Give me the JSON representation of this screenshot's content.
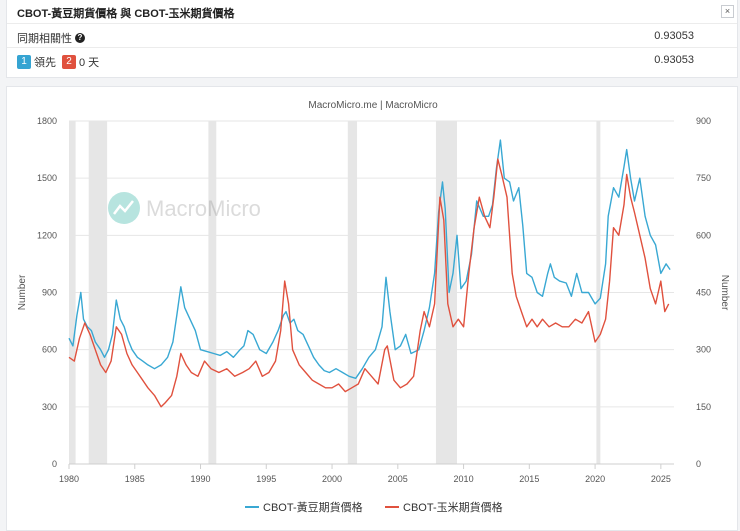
{
  "info": {
    "title": "CBOT-黃豆期貨價格 與 CBOT-玉米期貨價格",
    "close_label": "×",
    "correlation_label": "同期相關性",
    "help_icon": "?",
    "correlation_value": "0.93053",
    "lead_badge_1": "1",
    "lead_text": "領先",
    "lead_badge_2": "2",
    "lead_days": "0 天",
    "lead_value": "0.93053"
  },
  "colors": {
    "soy": "#39a8d3",
    "corn": "#e0513e",
    "recession": "#e6e6e6",
    "grid": "#e6e6e6"
  },
  "chart_data": {
    "type": "line",
    "title": "MacroMicro.me | MacroMicro",
    "watermark": "MacroMicro",
    "ylabel_left": "Number",
    "ylabel_right": "Number",
    "ylim_left": [
      0,
      1800
    ],
    "ylim_right": [
      0,
      900
    ],
    "yticks_left": [
      "0",
      "300",
      "600",
      "900",
      "1200",
      "1500",
      "1800"
    ],
    "yticks_right": [
      "0",
      "150",
      "300",
      "450",
      "600",
      "750",
      "900"
    ],
    "xlim": [
      1980,
      2026
    ],
    "xticks": [
      "1980",
      "1985",
      "1990",
      "1995",
      "2000",
      "2005",
      "2010",
      "2015",
      "2020",
      "2025"
    ],
    "recessions": [
      [
        1980.0,
        1980.5
      ],
      [
        1981.5,
        1982.9
      ],
      [
        1990.6,
        1991.2
      ],
      [
        2001.2,
        2001.9
      ],
      [
        2007.9,
        2009.5
      ],
      [
        2020.1,
        2020.4
      ]
    ],
    "series": [
      {
        "name": "CBOT-黃豆期貨價格",
        "axis": "left",
        "x": [
          1980.0,
          1980.3,
          1980.6,
          1980.9,
          1981.1,
          1981.4,
          1981.7,
          1982.0,
          1982.4,
          1982.7,
          1983.0,
          1983.3,
          1983.6,
          1983.9,
          1984.2,
          1984.5,
          1984.8,
          1985.2,
          1985.6,
          1986.0,
          1986.5,
          1987.0,
          1987.5,
          1987.9,
          1988.2,
          1988.5,
          1988.8,
          1989.2,
          1989.6,
          1990.0,
          1990.5,
          1991.0,
          1991.5,
          1992.0,
          1992.5,
          1993.0,
          1993.3,
          1993.6,
          1994.0,
          1994.5,
          1995.0,
          1995.5,
          1995.9,
          1996.3,
          1996.5,
          1996.8,
          1997.1,
          1997.4,
          1997.8,
          1998.2,
          1998.6,
          1999.0,
          1999.4,
          1999.8,
          2000.3,
          2000.8,
          2001.3,
          2001.8,
          2002.3,
          2002.8,
          2003.3,
          2003.8,
          2004.1,
          2004.4,
          2004.8,
          2005.2,
          2005.6,
          2006.0,
          2006.6,
          2007.0,
          2007.4,
          2007.8,
          2008.1,
          2008.4,
          2008.6,
          2008.9,
          2009.2,
          2009.5,
          2009.8,
          2010.2,
          2010.6,
          2011.0,
          2011.5,
          2011.9,
          2012.2,
          2012.5,
          2012.8,
          2013.1,
          2013.5,
          2013.8,
          2014.2,
          2014.5,
          2014.8,
          2015.2,
          2015.6,
          2016.0,
          2016.4,
          2016.6,
          2016.9,
          2017.3,
          2017.8,
          2018.2,
          2018.6,
          2019.0,
          2019.5,
          2020.0,
          2020.4,
          2020.8,
          2021.0,
          2021.4,
          2021.8,
          2022.2,
          2022.4,
          2022.7,
          2023.0,
          2023.4,
          2023.8,
          2024.2,
          2024.6,
          2025.0,
          2025.4,
          2025.7
        ],
        "values": [
          660,
          620,
          780,
          900,
          760,
          720,
          700,
          640,
          600,
          560,
          600,
          680,
          860,
          760,
          720,
          650,
          600,
          560,
          540,
          520,
          500,
          520,
          560,
          640,
          780,
          930,
          820,
          760,
          700,
          600,
          590,
          580,
          570,
          590,
          560,
          600,
          620,
          700,
          680,
          600,
          580,
          640,
          700,
          780,
          800,
          740,
          760,
          700,
          680,
          620,
          560,
          520,
          490,
          480,
          500,
          480,
          460,
          450,
          500,
          560,
          600,
          720,
          980,
          800,
          600,
          620,
          680,
          580,
          600,
          700,
          820,
          1000,
          1320,
          1480,
          1340,
          900,
          1000,
          1200,
          920,
          960,
          1100,
          1380,
          1300,
          1300,
          1360,
          1550,
          1700,
          1500,
          1480,
          1380,
          1450,
          1250,
          1000,
          980,
          900,
          880,
          1000,
          1050,
          980,
          960,
          950,
          880,
          1000,
          900,
          900,
          840,
          870,
          1050,
          1300,
          1450,
          1400,
          1560,
          1650,
          1500,
          1380,
          1500,
          1300,
          1200,
          1150,
          1000,
          1050,
          1020
        ]
      },
      {
        "name": "CBOT-玉米期貨價格",
        "axis": "right",
        "x": [
          1980.0,
          1980.4,
          1980.8,
          1981.2,
          1981.6,
          1982.0,
          1982.4,
          1982.8,
          1983.2,
          1983.6,
          1984.0,
          1984.4,
          1984.8,
          1985.2,
          1985.6,
          1986.0,
          1986.5,
          1987.0,
          1987.3,
          1987.8,
          1988.2,
          1988.5,
          1988.9,
          1989.3,
          1989.8,
          1990.3,
          1990.8,
          1991.4,
          1992.0,
          1992.6,
          1993.2,
          1993.7,
          1994.2,
          1994.7,
          1995.2,
          1995.7,
          1996.1,
          1996.4,
          1996.7,
          1997.0,
          1997.5,
          1998.0,
          1998.5,
          1999.0,
          1999.5,
          2000.0,
          2000.5,
          2001.0,
          2001.5,
          2002.0,
          2002.5,
          2003.0,
          2003.5,
          2004.0,
          2004.2,
          2004.7,
          2005.2,
          2005.7,
          2006.2,
          2006.7,
          2007.0,
          2007.4,
          2007.8,
          2008.2,
          2008.5,
          2008.8,
          2009.2,
          2009.6,
          2010.0,
          2010.4,
          2010.8,
          2011.2,
          2011.6,
          2012.0,
          2012.3,
          2012.6,
          2012.9,
          2013.3,
          2013.7,
          2014.0,
          2014.4,
          2014.8,
          2015.2,
          2015.6,
          2016.0,
          2016.5,
          2017.0,
          2017.5,
          2018.0,
          2018.5,
          2019.0,
          2019.5,
          2020.0,
          2020.4,
          2020.8,
          2021.1,
          2021.4,
          2021.8,
          2022.2,
          2022.4,
          2022.7,
          2023.0,
          2023.4,
          2023.8,
          2024.2,
          2024.6,
          2025.0,
          2025.3,
          2025.6
        ],
        "values": [
          280,
          270,
          330,
          370,
          340,
          300,
          260,
          240,
          270,
          360,
          340,
          290,
          260,
          240,
          220,
          200,
          180,
          150,
          160,
          180,
          230,
          290,
          260,
          240,
          230,
          270,
          250,
          240,
          250,
          230,
          240,
          250,
          270,
          230,
          240,
          270,
          350,
          480,
          420,
          300,
          260,
          240,
          220,
          210,
          200,
          200,
          210,
          190,
          200,
          210,
          250,
          230,
          210,
          300,
          310,
          220,
          200,
          210,
          230,
          350,
          400,
          360,
          420,
          700,
          640,
          420,
          360,
          380,
          360,
          500,
          620,
          700,
          650,
          620,
          700,
          800,
          760,
          700,
          500,
          440,
          400,
          360,
          380,
          360,
          380,
          360,
          370,
          360,
          360,
          380,
          370,
          400,
          320,
          340,
          380,
          480,
          620,
          600,
          680,
          760,
          700,
          660,
          600,
          540,
          460,
          420,
          480,
          400,
          420
        ]
      }
    ]
  }
}
